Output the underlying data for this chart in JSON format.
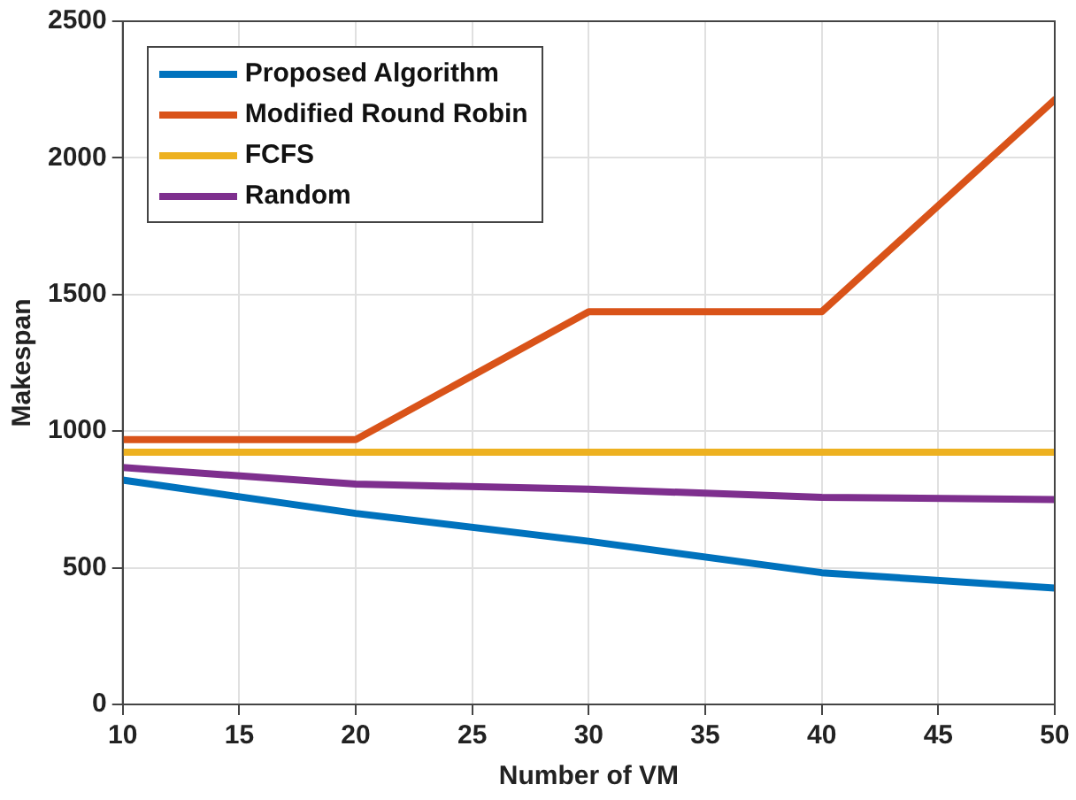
{
  "chart_data": {
    "type": "line",
    "xlabel": "Number of VM",
    "ylabel": "Makespan",
    "x": [
      10,
      20,
      30,
      40,
      50
    ],
    "series": [
      {
        "name": "Proposed Algorithm",
        "color": "#0072bd",
        "values": [
          821,
          699,
          597,
          482,
          426
        ]
      },
      {
        "name": "Modified Round Robin",
        "color": "#d95319",
        "values": [
          969,
          969,
          1437,
          1437,
          2213
        ]
      },
      {
        "name": "FCFS",
        "color": "#edb120",
        "values": [
          923,
          923,
          923,
          923,
          923
        ]
      },
      {
        "name": "Random",
        "color": "#7e2f8e",
        "values": [
          867,
          806,
          788,
          758,
          750
        ]
      }
    ],
    "xlim": [
      10,
      50
    ],
    "xticks": [
      10,
      15,
      20,
      25,
      30,
      35,
      40,
      45,
      50
    ],
    "ylim": [
      0,
      2500
    ],
    "yticks": [
      0,
      500,
      1000,
      1500,
      2000,
      2500
    ],
    "grid": true,
    "legend": "top left",
    "marker": "none",
    "line_style": "solid"
  }
}
